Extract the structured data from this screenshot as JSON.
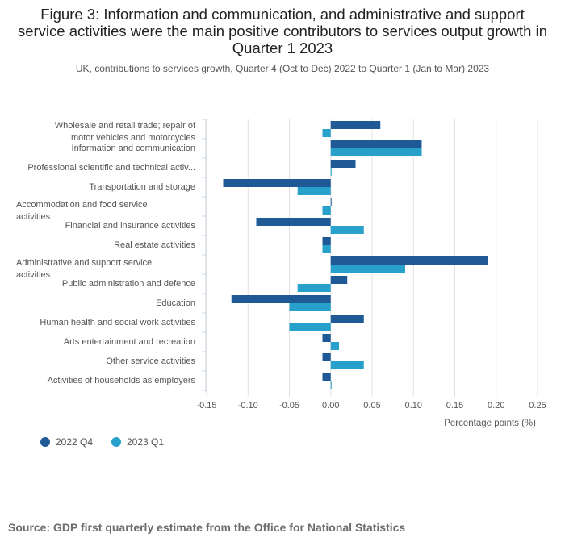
{
  "title": "Figure 3: Information and communication, and administrative and support service activities were the main positive contributors to services output growth in Quarter 1 2023",
  "subtitle": "UK, contributions to services growth, Quarter 4 (Oct to Dec) 2022 to Quarter 1 (Jan to Mar) 2023",
  "source": "Source: GDP first quarterly estimate from the Office for National Statistics",
  "colors": {
    "q4": "#1f5a96",
    "q1": "#27a0cc",
    "grid": "#e0e0e0",
    "text": "#555555"
  },
  "chart_data": {
    "type": "bar",
    "orientation": "horizontal",
    "categories": [
      [
        "Wholesale and retail trade; repair of",
        "motor vehicles and motorcycles"
      ],
      [
        "Information and communication"
      ],
      [
        "Professional scientific and technical activ..."
      ],
      [
        "Transportation and storage"
      ],
      [
        "Accommodation and food service",
        "activities"
      ],
      [
        "Financial and insurance activities"
      ],
      [
        "Real estate activities"
      ],
      [
        "Administrative and support service",
        "activities"
      ],
      [
        "Public administration and defence"
      ],
      [
        "Education"
      ],
      [
        "Human health and social work activities"
      ],
      [
        "Arts entertainment and recreation"
      ],
      [
        "Other service activities"
      ],
      [
        "Activities of households as employers"
      ]
    ],
    "series": [
      {
        "name": "2022 Q4",
        "color": "#1f5a96",
        "values": [
          0.06,
          0.11,
          0.03,
          -0.13,
          0.0,
          -0.09,
          -0.01,
          0.19,
          0.02,
          -0.12,
          0.04,
          -0.01,
          -0.01,
          -0.01
        ]
      },
      {
        "name": "2023 Q1",
        "color": "#27a0cc",
        "values": [
          -0.01,
          0.11,
          0.0,
          -0.04,
          -0.01,
          0.04,
          -0.01,
          0.09,
          -0.04,
          -0.05,
          -0.05,
          0.01,
          0.04,
          0.0
        ]
      }
    ],
    "xlim": [
      -0.15,
      0.25
    ],
    "xticks": [
      "-0.15",
      "-0.10",
      "-0.05",
      "0.00",
      "0.05",
      "0.10",
      "0.15",
      "0.20",
      "0.25"
    ],
    "xtick_values": [
      -0.15,
      -0.1,
      -0.05,
      0.0,
      0.05,
      0.1,
      0.15,
      0.2,
      0.25
    ],
    "xlabel": "Percentage points (%)",
    "legend_position": "bottom-left"
  }
}
